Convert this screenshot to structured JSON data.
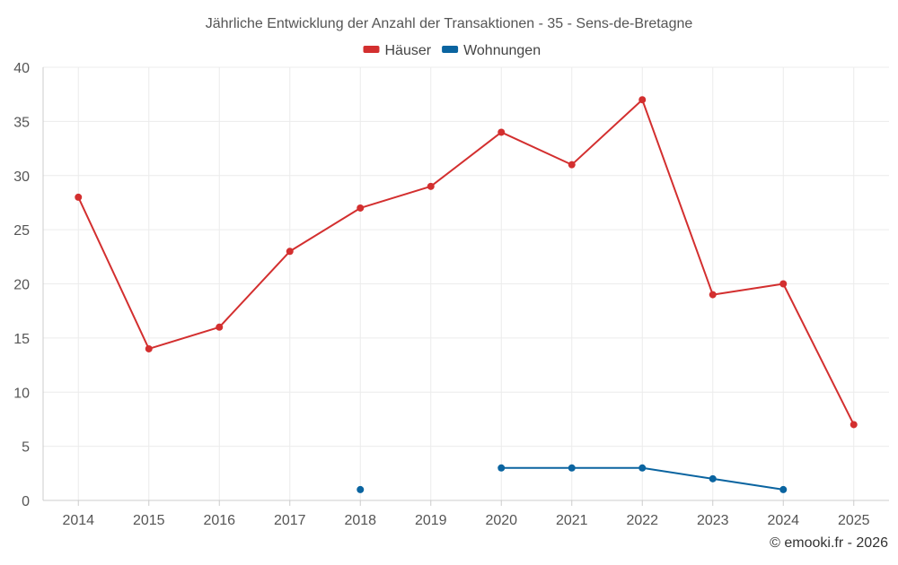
{
  "chart_data": {
    "type": "line",
    "title": "Jährliche Entwicklung der Anzahl der Transaktionen - 35 - Sens-de-Bretagne",
    "xlabel": "",
    "ylabel": "",
    "categories": [
      "2014",
      "2015",
      "2016",
      "2017",
      "2018",
      "2019",
      "2020",
      "2021",
      "2022",
      "2023",
      "2024",
      "2025"
    ],
    "ylim": [
      0,
      40
    ],
    "yticks": [
      "0",
      "5",
      "10",
      "15",
      "20",
      "25",
      "30",
      "35",
      "40"
    ],
    "grid": true,
    "legend_position": "top-center",
    "series": [
      {
        "name": "Häuser",
        "color": "#d32f2f",
        "values": [
          28,
          14,
          16,
          23,
          27,
          29,
          34,
          31,
          37,
          19,
          20,
          7
        ]
      },
      {
        "name": "Wohnungen",
        "color": "#0a64a0",
        "values": [
          null,
          null,
          null,
          null,
          1,
          null,
          3,
          3,
          3,
          2,
          1,
          null
        ]
      }
    ]
  },
  "credit": "© emooki.fr - 2026"
}
